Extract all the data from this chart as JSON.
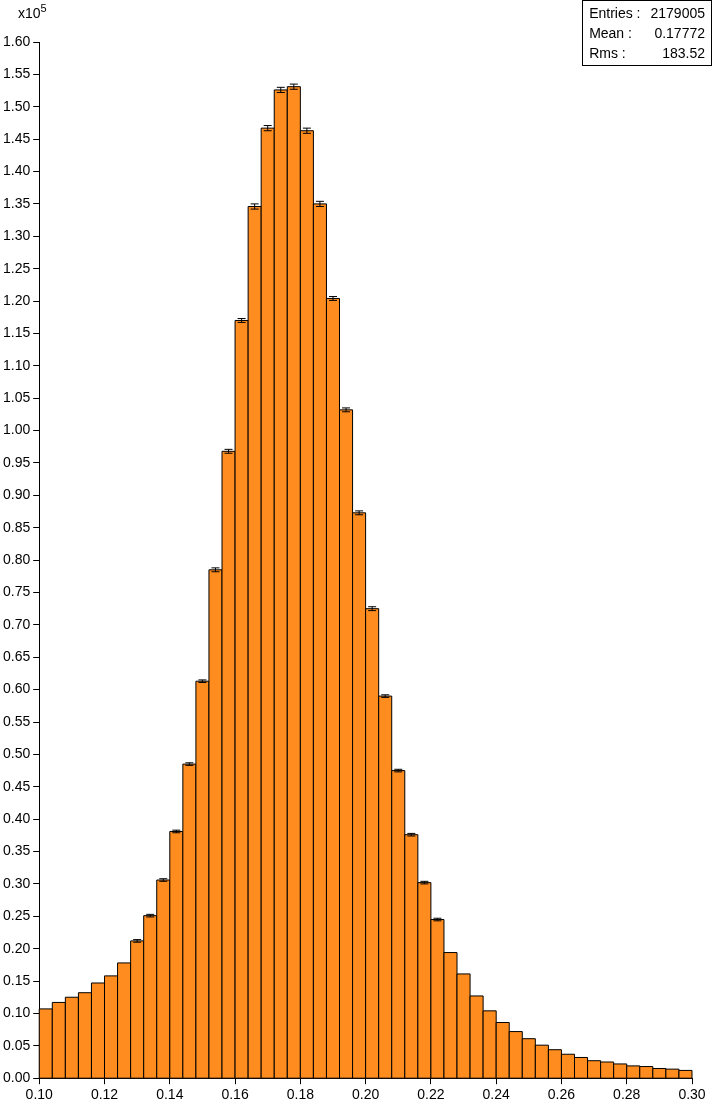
{
  "chart_data": {
    "type": "histogram",
    "ylabel": "x10$^{5}$",
    "annotations": [
      "Entries : 2179005",
      "Mean :  0.17772",
      "Rms :  183.52"
    ],
    "bins": [
      0.1,
      0.104,
      0.108,
      0.112,
      0.116,
      0.12,
      0.124,
      0.128,
      0.132,
      0.136,
      0.14,
      0.144,
      0.148,
      0.152,
      0.156,
      0.16,
      0.164,
      0.168,
      0.172,
      0.176,
      0.18,
      0.184,
      0.188,
      0.192,
      0.196,
      0.2,
      0.204,
      0.208,
      0.212,
      0.216,
      0.22,
      0.224,
      0.228,
      0.232,
      0.236,
      0.24,
      0.244,
      0.248,
      0.252,
      0.256,
      0.26,
      0.264,
      0.268,
      0.272,
      0.276,
      0.28,
      0.284,
      0.288,
      0.292,
      0.296,
      0.3
    ],
    "values": [
      0.107,
      0.117,
      0.125,
      0.132,
      0.147,
      0.158,
      0.178,
      0.212,
      0.251,
      0.306,
      0.381,
      0.485,
      0.613,
      0.785,
      0.968,
      1.17,
      1.346,
      1.467,
      1.526,
      1.531,
      1.463,
      1.35,
      1.204,
      1.032,
      0.873,
      0.725,
      0.59,
      0.475,
      0.376,
      0.302,
      0.245,
      0.194,
      0.161,
      0.127,
      0.104,
      0.086,
      0.072,
      0.061,
      0.051,
      0.044,
      0.037,
      0.032,
      0.027,
      0.025,
      0.022,
      0.019,
      0.018,
      0.015,
      0.014,
      0.012
    ],
    "errors": [
      null,
      null,
      null,
      null,
      null,
      null,
      null,
      0.002,
      0.002,
      0.002,
      0.002,
      0.002,
      0.002,
      0.003,
      0.003,
      0.003,
      0.004,
      0.004,
      0.004,
      0.004,
      0.004,
      0.004,
      0.003,
      0.003,
      0.003,
      0.003,
      0.002,
      0.002,
      0.002,
      0.002,
      0.002,
      null,
      null,
      null,
      null,
      null,
      null,
      null,
      null,
      null,
      null,
      null,
      null,
      null,
      null,
      null,
      null,
      null,
      null,
      null
    ],
    "color": "#ff8c1e",
    "xlim": [
      0.1,
      0.3
    ],
    "xticks": [
      {
        "value": 0.1,
        "label": "0.10"
      },
      {
        "value": 0.12,
        "label": "0.12"
      },
      {
        "value": 0.14,
        "label": "0.14"
      },
      {
        "value": 0.16,
        "label": "0.16"
      },
      {
        "value": 0.18,
        "label": "0.18"
      },
      {
        "value": 0.2,
        "label": "0.20"
      },
      {
        "value": 0.22,
        "label": "0.22"
      },
      {
        "value": 0.24,
        "label": "0.24"
      },
      {
        "value": 0.26,
        "label": "0.26"
      },
      {
        "value": 0.28,
        "label": "0.28"
      },
      {
        "value": 0.3,
        "label": "0.30"
      }
    ],
    "ylim": [
      0,
      1.6
    ],
    "yticks": [
      {
        "value": 0,
        "label": "0.00"
      },
      {
        "value": 0.05,
        "label": "0.05"
      },
      {
        "value": 0.1,
        "label": "0.10"
      },
      {
        "value": 0.15,
        "label": "0.15"
      },
      {
        "value": 0.2,
        "label": "0.20"
      },
      {
        "value": 0.25,
        "label": "0.25"
      },
      {
        "value": 0.3,
        "label": "0.30"
      },
      {
        "value": 0.35,
        "label": "0.35"
      },
      {
        "value": 0.4,
        "label": "0.40"
      },
      {
        "value": 0.45,
        "label": "0.45"
      },
      {
        "value": 0.5,
        "label": "0.50"
      },
      {
        "value": 0.55,
        "label": "0.55"
      },
      {
        "value": 0.6,
        "label": "0.60"
      },
      {
        "value": 0.65,
        "label": "0.65"
      },
      {
        "value": 0.7,
        "label": "0.70"
      },
      {
        "value": 0.75,
        "label": "0.75"
      },
      {
        "value": 0.8,
        "label": "0.80"
      },
      {
        "value": 0.85,
        "label": "0.85"
      },
      {
        "value": 0.9,
        "label": "0.90"
      },
      {
        "value": 0.95,
        "label": "0.95"
      },
      {
        "value": 1.0,
        "label": "1.00"
      },
      {
        "value": 1.05,
        "label": "1.05"
      },
      {
        "value": 1.1,
        "label": "1.10"
      },
      {
        "value": 1.15,
        "label": "1.15"
      },
      {
        "value": 1.2,
        "label": "1.20"
      },
      {
        "value": 1.25,
        "label": "1.25"
      },
      {
        "value": 1.3,
        "label": "1.30"
      },
      {
        "value": 1.35,
        "label": "1.35"
      },
      {
        "value": 1.4,
        "label": "1.40"
      },
      {
        "value": 1.45,
        "label": "1.45"
      },
      {
        "value": 1.5,
        "label": "1.50"
      },
      {
        "value": 1.55,
        "label": "1.55"
      },
      {
        "value": 1.6,
        "label": "1.60"
      }
    ],
    "grid": false,
    "legend": false
  }
}
